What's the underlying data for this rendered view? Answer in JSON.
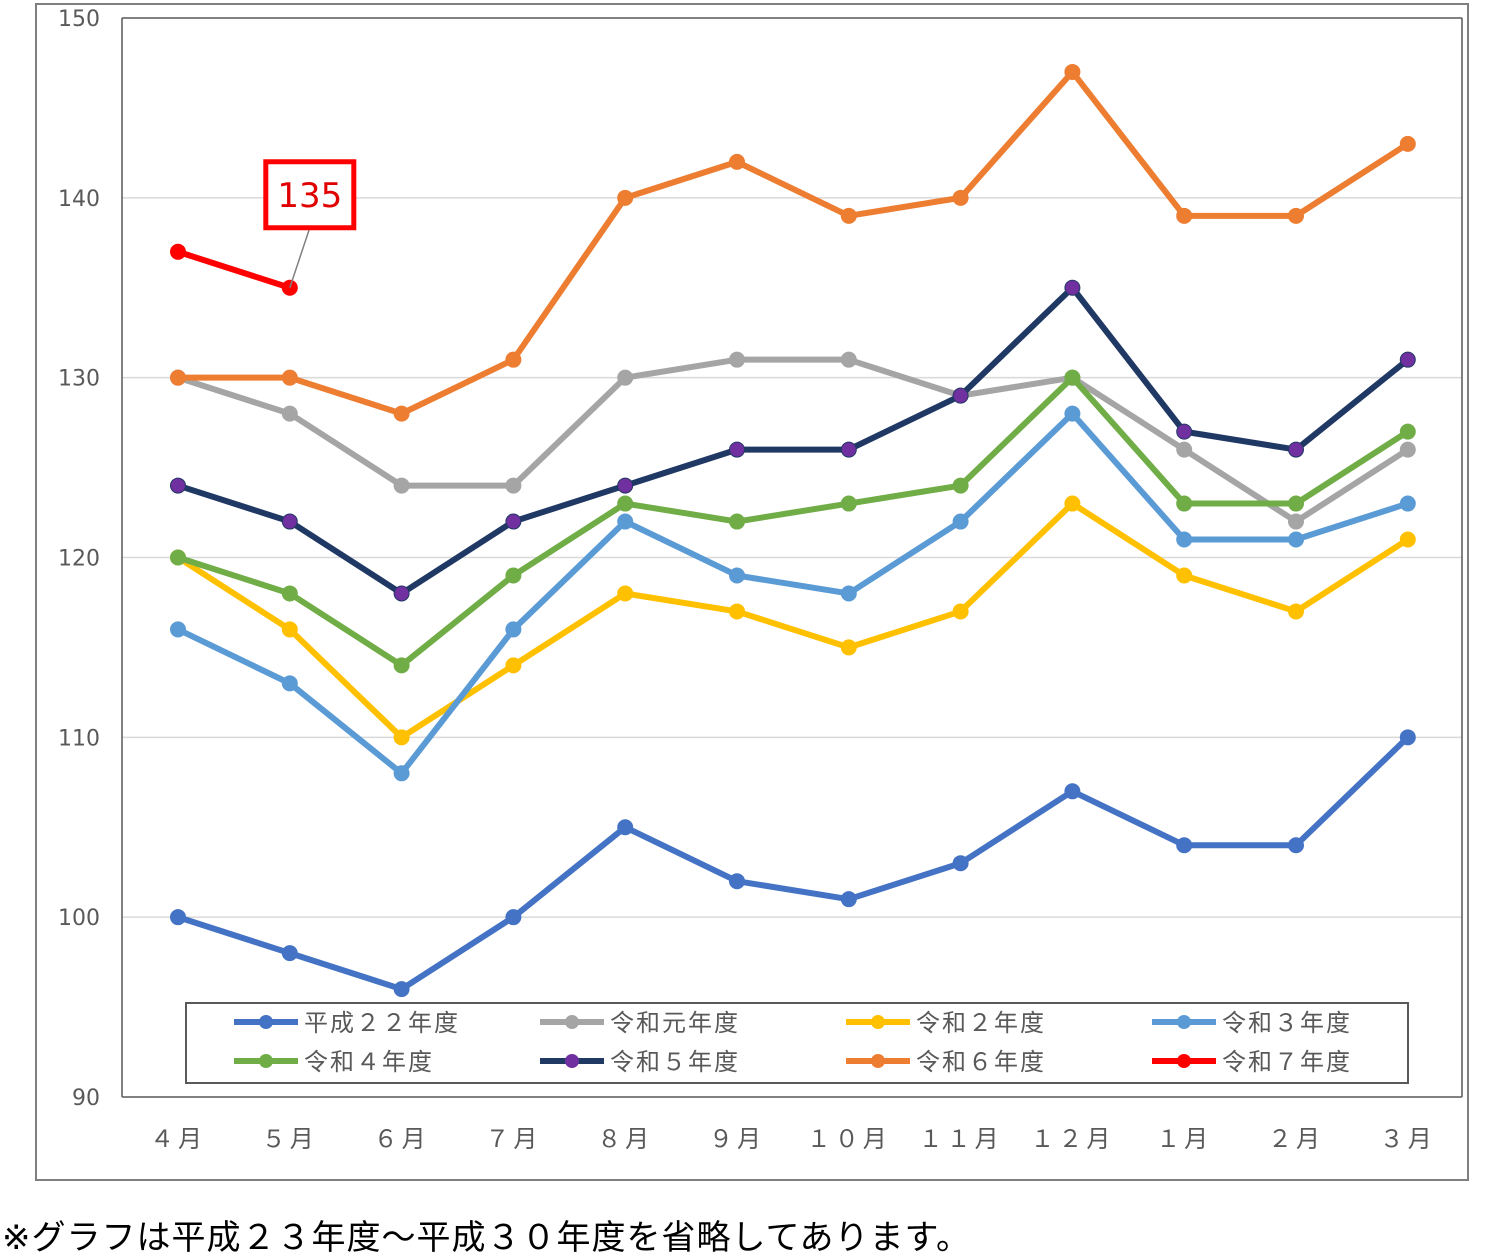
{
  "chart_data": {
    "type": "line",
    "categories": [
      "４月",
      "５月",
      "６月",
      "７月",
      "８月",
      "９月",
      "１０月",
      "１１月",
      "１２月",
      "１月",
      "２月",
      "３月"
    ],
    "ylim": [
      90,
      150
    ],
    "y_ticks": [
      "90",
      "100",
      "110",
      "120",
      "130",
      "140",
      "150"
    ],
    "grid": true,
    "legend_placement": "bottom-inside",
    "series": [
      {
        "name": "平成２２年度",
        "color": "#4472c4",
        "marker": "#4472c4",
        "values": [
          100,
          98,
          96,
          100,
          105,
          102,
          101,
          103,
          107,
          104,
          104,
          110
        ]
      },
      {
        "name": "令和元年度",
        "color": "#a5a5a5",
        "marker": "#a5a5a5",
        "values": [
          130,
          128,
          124,
          124,
          130,
          131,
          131,
          129,
          130,
          126,
          122,
          126
        ]
      },
      {
        "name": "令和２年度",
        "color": "#ffc000",
        "marker": "#ffc000",
        "values": [
          120,
          116,
          110,
          114,
          118,
          117,
          115,
          117,
          123,
          119,
          117,
          121
        ]
      },
      {
        "name": "令和３年度",
        "color": "#5b9bd5",
        "marker": "#5b9bd5",
        "values": [
          116,
          113,
          108,
          116,
          122,
          119,
          118,
          122,
          128,
          121,
          121,
          123
        ]
      },
      {
        "name": "令和４年度",
        "color": "#70ad47",
        "marker": "#70ad47",
        "values": [
          120,
          118,
          114,
          119,
          123,
          122,
          123,
          124,
          130,
          123,
          123,
          127
        ]
      },
      {
        "name": "令和５年度",
        "color": "#203864",
        "marker": "#7030a0",
        "values": [
          124,
          122,
          118,
          122,
          124,
          126,
          126,
          129,
          135,
          127,
          126,
          131
        ]
      },
      {
        "name": "令和６年度",
        "color": "#ed7d31",
        "marker": "#ed7d31",
        "values": [
          130,
          130,
          128,
          131,
          140,
          142,
          139,
          140,
          147,
          139,
          139,
          143
        ]
      },
      {
        "name": "令和７年度",
        "color": "#ff0000",
        "marker": "#ff0000",
        "values": [
          137,
          135,
          null,
          null,
          null,
          null,
          null,
          null,
          null,
          null,
          null,
          null
        ]
      }
    ],
    "annotations": [
      {
        "series": "令和７年度",
        "category": "５月",
        "text": "135"
      }
    ]
  },
  "note": "※グラフは平成２３年度～平成３０年度を省略してあります。"
}
